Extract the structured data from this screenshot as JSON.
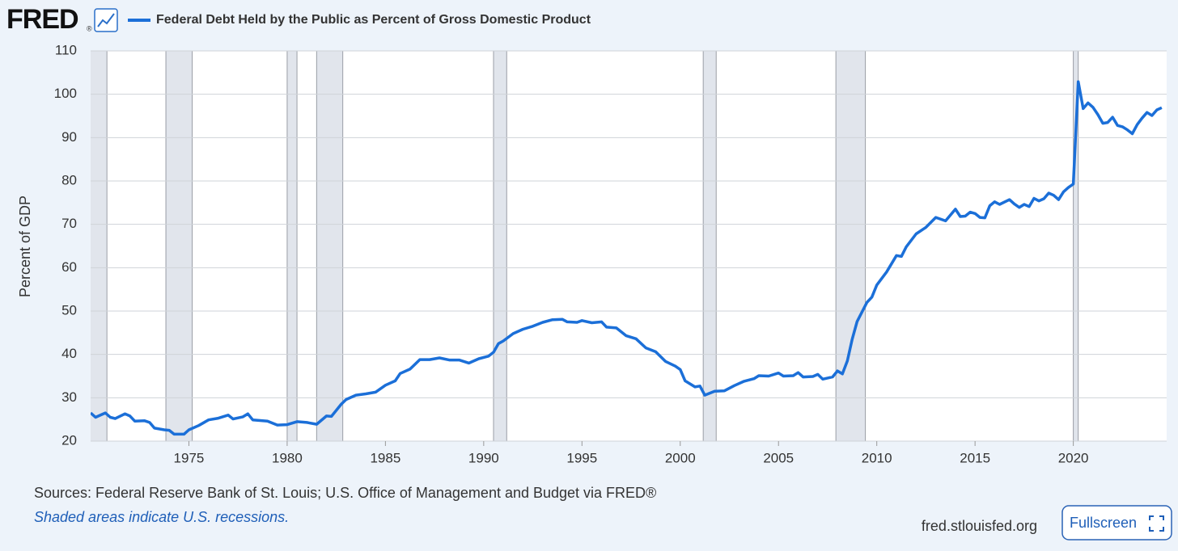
{
  "header": {
    "logo": "FRED",
    "logo_mark": "®"
  },
  "chart_data": {
    "type": "line",
    "title": "Federal Debt Held by the Public as Percent of Gross Domestic Product",
    "y_label": "Percent of GDP",
    "color": "#1b6fd8",
    "x": [
      1970.0,
      1970.25,
      1970.75,
      1971.0,
      1971.25,
      1971.75,
      1972.0,
      1972.25,
      1972.75,
      1973.0,
      1973.25,
      1973.75,
      1974.0,
      1974.25,
      1974.75,
      1975.0,
      1975.5,
      1976.0,
      1976.5,
      1977.0,
      1977.25,
      1977.75,
      1978.0,
      1978.25,
      1978.75,
      1979.0,
      1979.5,
      1980.0,
      1980.5,
      1981.0,
      1981.5,
      1982.0,
      1982.25,
      1982.75,
      1983.0,
      1983.5,
      1984.0,
      1984.5,
      1985.0,
      1985.5,
      1985.75,
      1986.25,
      1986.75,
      1987.25,
      1987.75,
      1988.25,
      1988.75,
      1989.25,
      1989.75,
      1990.25,
      1990.5,
      1990.75,
      1991.0,
      1991.5,
      1992.0,
      1992.5,
      1993.0,
      1993.5,
      1994.0,
      1994.25,
      1994.75,
      1995.0,
      1995.5,
      1996.0,
      1996.25,
      1996.75,
      1997.25,
      1997.75,
      1998.25,
      1998.75,
      1999.25,
      1999.75,
      2000.0,
      2000.25,
      2000.75,
      2001.0,
      2001.25,
      2001.75,
      2002.25,
      2002.75,
      2003.25,
      2003.75,
      2004.0,
      2004.5,
      2005.0,
      2005.25,
      2005.75,
      2006.0,
      2006.25,
      2006.75,
      2007.0,
      2007.25,
      2007.75,
      2008.0,
      2008.25,
      2008.5,
      2008.75,
      2009.0,
      2009.5,
      2009.75,
      2010.0,
      2010.5,
      2011.0,
      2011.25,
      2011.5,
      2012.0,
      2012.5,
      2013.0,
      2013.5,
      2014.0,
      2014.25,
      2014.5,
      2014.75,
      2015.0,
      2015.25,
      2015.5,
      2015.75,
      2016.0,
      2016.25,
      2016.75,
      2017.0,
      2017.25,
      2017.5,
      2017.75,
      2018.0,
      2018.25,
      2018.5,
      2018.75,
      2019.0,
      2019.25,
      2019.5,
      2019.75,
      2020.0,
      2020.25,
      2020.5,
      2020.75,
      2021.0,
      2021.25,
      2021.5,
      2021.75,
      2022.0,
      2022.25,
      2022.5,
      2022.75,
      2023.0,
      2023.25,
      2023.5,
      2023.75,
      2024.0,
      2024.25,
      2024.5
    ],
    "values": [
      26.5,
      25.5,
      26.5,
      25.5,
      25.2,
      26.3,
      25.8,
      24.6,
      24.7,
      24.3,
      23.0,
      22.6,
      22.5,
      21.6,
      21.6,
      22.6,
      23.6,
      24.9,
      25.3,
      26.0,
      25.1,
      25.6,
      26.3,
      24.9,
      24.7,
      24.6,
      23.7,
      23.8,
      24.5,
      24.3,
      23.9,
      25.8,
      25.7,
      28.5,
      29.6,
      30.6,
      30.9,
      31.3,
      32.9,
      33.9,
      35.6,
      36.6,
      38.8,
      38.8,
      39.2,
      38.7,
      38.7,
      38.0,
      39.0,
      39.6,
      40.5,
      42.5,
      43.1,
      44.8,
      45.8,
      46.5,
      47.4,
      48.0,
      48.1,
      47.5,
      47.4,
      47.8,
      47.3,
      47.5,
      46.3,
      46.1,
      44.3,
      43.6,
      41.5,
      40.6,
      38.4,
      37.3,
      36.5,
      33.9,
      32.5,
      32.7,
      30.6,
      31.5,
      31.6,
      32.8,
      33.8,
      34.4,
      35.1,
      35.0,
      35.7,
      35.0,
      35.1,
      35.8,
      34.8,
      34.9,
      35.4,
      34.3,
      34.8,
      36.2,
      35.5,
      38.5,
      43.5,
      47.6,
      52.0,
      53.2,
      56.0,
      59.0,
      62.8,
      62.6,
      64.8,
      67.8,
      69.3,
      71.6,
      70.8,
      73.5,
      71.8,
      71.9,
      72.8,
      72.5,
      71.6,
      71.5,
      74.3,
      75.2,
      74.6,
      75.7,
      74.7,
      73.9,
      74.6,
      74.1,
      76.0,
      75.4,
      75.9,
      77.2,
      76.7,
      75.7,
      77.5,
      78.5,
      79.3,
      102.9,
      96.7,
      98.0,
      97.0,
      95.3,
      93.3,
      93.5,
      94.7,
      92.8,
      92.5,
      91.8,
      90.9,
      93.0,
      94.5,
      95.8,
      95.1,
      96.4,
      96.9
    ],
    "recessions": [
      [
        1969.75,
        1970.83
      ],
      [
        1973.83,
        1975.17
      ],
      [
        1980.0,
        1980.5
      ],
      [
        1981.5,
        1982.83
      ],
      [
        1990.5,
        1991.17
      ],
      [
        2001.17,
        2001.83
      ],
      [
        2007.92,
        2009.42
      ],
      [
        2020.0,
        2020.25
      ]
    ],
    "xlim": [
      1970,
      2024.75
    ],
    "xticks": [
      1975,
      1980,
      1985,
      1990,
      1995,
      2000,
      2005,
      2010,
      2015,
      2020
    ],
    "ylim": [
      20,
      110
    ],
    "yticks": [
      20,
      30,
      40,
      50,
      60,
      70,
      80,
      90,
      100,
      110
    ],
    "grid": true
  },
  "footer": {
    "sources": "Sources: Federal Reserve Bank of St. Louis; U.S. Office of Management and Budget via FRED®",
    "note": "Shaded areas indicate U.S. recessions.",
    "site": "fred.stlouisfed.org",
    "button": "Fullscreen"
  }
}
